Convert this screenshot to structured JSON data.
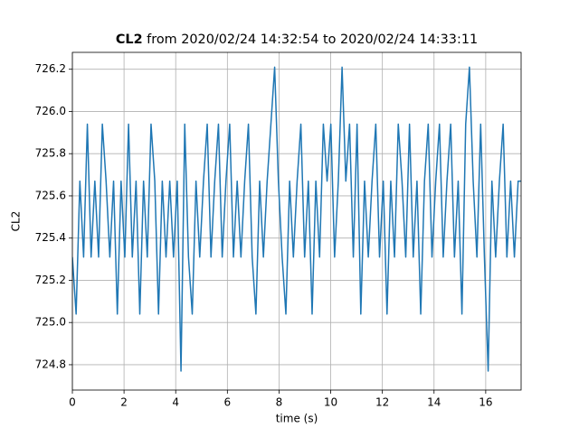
{
  "chart_data": {
    "type": "line",
    "title_var": "CL2",
    "title": "from 2020/02/24 14:32:54 to 2020/02/24 14:33:11",
    "xlabel": "time (s)",
    "ylabel": "CL2",
    "xlim": [
      0,
      17.37
    ],
    "ylim": [
      724.68,
      726.28
    ],
    "xticks": [
      0,
      2,
      4,
      6,
      8,
      10,
      12,
      14,
      16
    ],
    "yticks": [
      724.8,
      {
        "value": 725.0,
        "label": "725.0"
      },
      725.2,
      725.4,
      725.6,
      725.8,
      {
        "value": 726.0,
        "label": "726.0"
      },
      726.2
    ],
    "grid": true,
    "series": [
      {
        "color": "#1f77b4",
        "x": [
          0,
          0.145,
          0.29,
          0.435,
          0.58,
          0.725,
          0.87,
          1.015,
          1.16,
          1.305,
          1.45,
          1.595,
          1.74,
          1.885,
          2.03,
          2.175,
          2.32,
          2.465,
          2.61,
          2.755,
          2.9,
          3.045,
          3.19,
          3.335,
          3.48,
          3.625,
          3.77,
          3.915,
          4.06,
          4.205,
          4.35,
          4.495,
          4.64,
          4.785,
          4.93,
          5.075,
          5.22,
          5.365,
          5.51,
          5.655,
          5.8,
          5.945,
          6.09,
          6.235,
          6.38,
          6.525,
          6.67,
          6.815,
          6.96,
          7.105,
          7.25,
          7.395,
          7.54,
          7.685,
          7.83,
          7.975,
          8.12,
          8.265,
          8.41,
          8.555,
          8.7,
          8.845,
          8.99,
          9.135,
          9.28,
          9.425,
          9.57,
          9.715,
          9.86,
          10.005,
          10.15,
          10.295,
          10.44,
          10.585,
          10.73,
          10.875,
          11.02,
          11.165,
          11.31,
          11.455,
          11.6,
          11.745,
          11.89,
          12.035,
          12.18,
          12.325,
          12.47,
          12.615,
          12.76,
          12.905,
          13.05,
          13.195,
          13.34,
          13.485,
          13.63,
          13.775,
          13.92,
          14.065,
          14.21,
          14.355,
          14.5,
          14.645,
          14.79,
          14.935,
          15.08,
          15.225,
          15.37,
          15.515,
          15.66,
          15.805,
          15.95,
          16.095,
          16.24,
          16.385,
          16.53,
          16.675,
          16.82,
          16.965,
          17.11,
          17.255,
          17.37
        ],
        "values": [
          725.31,
          725.04,
          725.67,
          725.31,
          725.94,
          725.31,
          725.67,
          725.31,
          725.94,
          725.67,
          725.31,
          725.67,
          725.04,
          725.67,
          725.31,
          725.94,
          725.31,
          725.67,
          725.04,
          725.67,
          725.31,
          725.94,
          725.67,
          725.04,
          725.67,
          725.31,
          725.67,
          725.31,
          725.67,
          724.77,
          725.94,
          725.31,
          725.04,
          725.67,
          725.31,
          725.67,
          725.94,
          725.31,
          725.67,
          725.94,
          725.31,
          725.67,
          725.94,
          725.31,
          725.67,
          725.31,
          725.67,
          725.94,
          725.31,
          725.04,
          725.67,
          725.31,
          725.67,
          725.94,
          726.21,
          725.67,
          725.31,
          725.04,
          725.67,
          725.31,
          725.67,
          725.94,
          725.31,
          725.67,
          725.04,
          725.67,
          725.31,
          725.94,
          725.67,
          725.94,
          725.31,
          725.67,
          726.21,
          725.67,
          725.94,
          725.31,
          725.94,
          725.04,
          725.67,
          725.31,
          725.67,
          725.94,
          725.31,
          725.67,
          725.04,
          725.67,
          725.31,
          725.94,
          725.67,
          725.31,
          725.94,
          725.31,
          725.67,
          725.04,
          725.67,
          725.94,
          725.31,
          725.67,
          725.94,
          725.31,
          725.67,
          725.94,
          725.31,
          725.67,
          725.04,
          725.94,
          726.21,
          725.67,
          725.31,
          725.94,
          725.31,
          724.77,
          725.67,
          725.31,
          725.67,
          725.94,
          725.31,
          725.67,
          725.31,
          725.67,
          725.67
        ]
      }
    ]
  }
}
